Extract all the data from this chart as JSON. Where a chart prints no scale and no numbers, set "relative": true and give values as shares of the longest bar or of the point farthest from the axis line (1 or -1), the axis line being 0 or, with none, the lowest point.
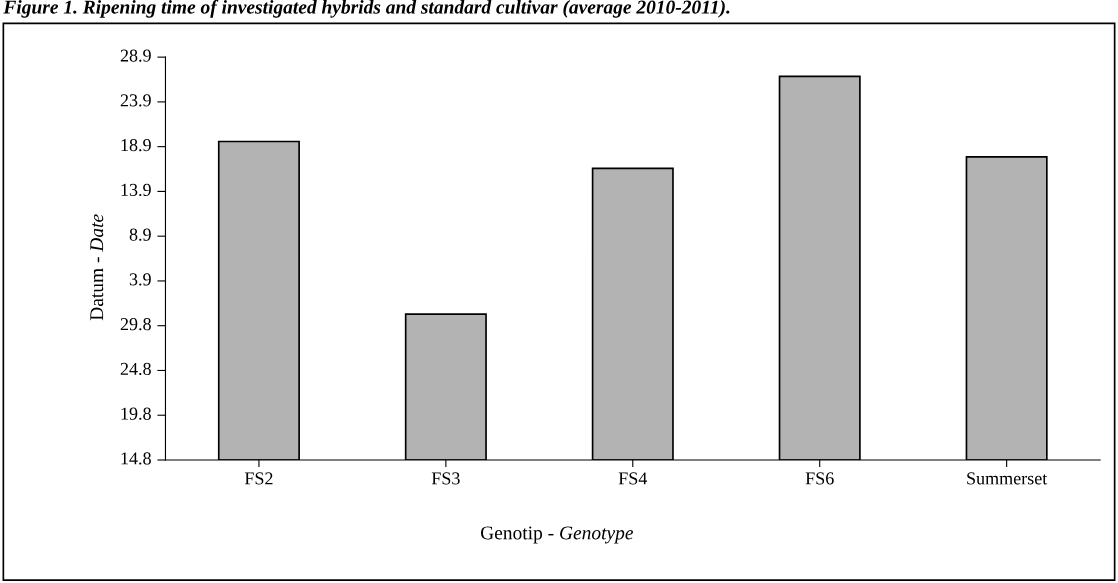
{
  "chart_data": {
    "type": "bar",
    "title": "Figure 1. Ripening time of investigated hybrids and standard cultivar (average 2010-2011).",
    "xlabel": "Genotip - Genotype",
    "ylabel": "Datum - Date",
    "categories": [
      "FS2",
      "FS3",
      "FS4",
      "FS6",
      "Summerset"
    ],
    "values": [
      0.83,
      0.38,
      0.76,
      1,
      0.79
    ],
    "relative": true,
    "color": "#b3b3b3",
    "annotations": [
      "14.8",
      "19.8",
      "24.8",
      "29.8",
      "3.9",
      "8.9",
      "13.9",
      "18.9",
      "23.9",
      "28.9"
    ]
  }
}
